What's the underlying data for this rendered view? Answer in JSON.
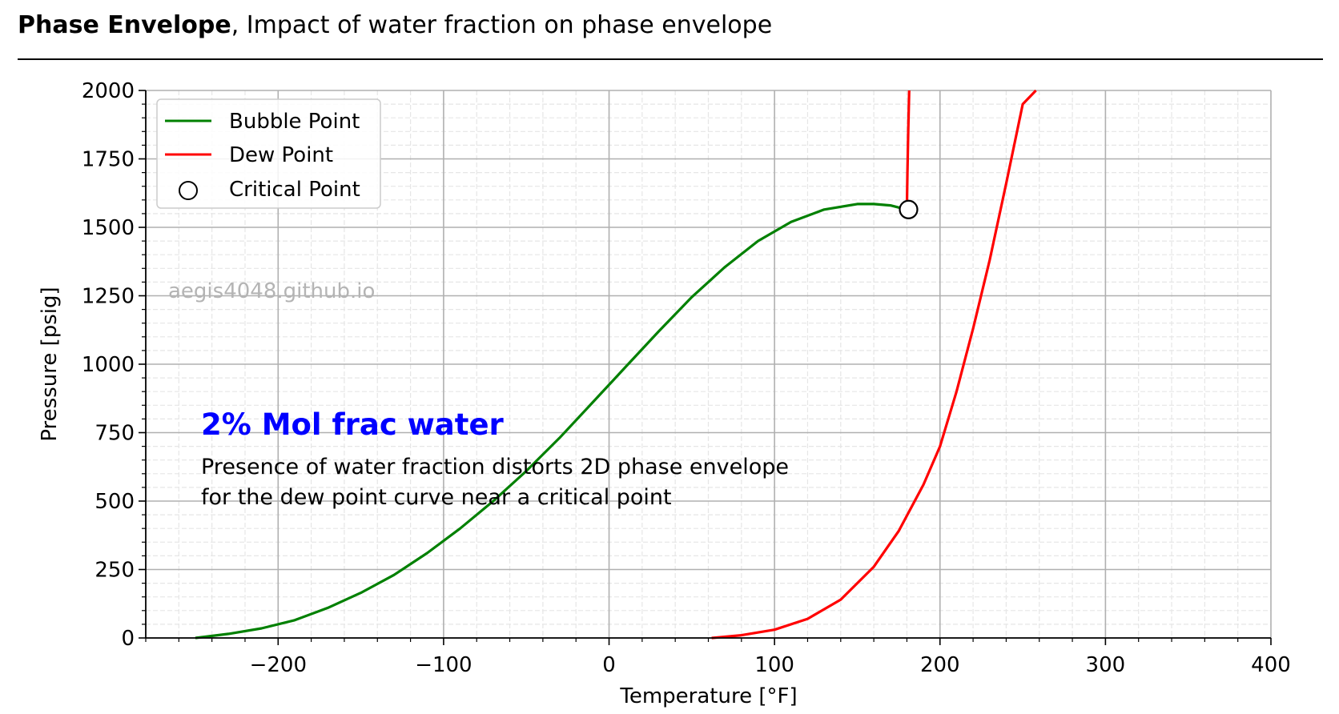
{
  "header": {
    "title_bold": "Phase Envelope",
    "title_rest": ", Impact of water fraction on phase envelope"
  },
  "watermark": "aegis4048.github.io",
  "annotation": {
    "headline": "2% Mol frac water",
    "line1": "Presence of water fraction distorts 2D phase envelope",
    "line2": "for the dew point curve near a critical point",
    "headline_color": "#0000ff"
  },
  "chart_data": {
    "type": "line",
    "xlabel": "Temperature [°F]",
    "ylabel": "Pressure [psig]",
    "xlim": [
      -280,
      400
    ],
    "ylim": [
      0,
      2000
    ],
    "x_ticks": [
      -200,
      -100,
      0,
      100,
      200,
      300,
      400
    ],
    "x_tick_labels": [
      "−200",
      "−100",
      "0",
      "100",
      "200",
      "300",
      "400"
    ],
    "y_ticks": [
      0,
      250,
      500,
      750,
      1000,
      1250,
      1500,
      1750,
      2000
    ],
    "y_tick_labels": [
      "0",
      "250",
      "500",
      "750",
      "1000",
      "1250",
      "1500",
      "1750",
      "2000"
    ],
    "grid": true,
    "legend_position": "top-left",
    "series": [
      {
        "name": "Bubble Point",
        "color": "#008000",
        "x": [
          -250,
          -230,
          -210,
          -190,
          -170,
          -150,
          -130,
          -110,
          -90,
          -70,
          -50,
          -30,
          -10,
          10,
          30,
          50,
          70,
          90,
          110,
          130,
          150,
          160,
          170,
          180
        ],
        "y": [
          0,
          15,
          35,
          65,
          110,
          165,
          230,
          310,
          400,
          500,
          610,
          730,
          860,
          990,
          1120,
          1245,
          1355,
          1450,
          1520,
          1565,
          1585,
          1585,
          1580,
          1565
        ]
      },
      {
        "name": "Dew Point",
        "color": "#ff0000",
        "x": [
          62,
          80,
          100,
          120,
          140,
          160,
          175,
          190,
          200,
          210,
          220,
          230,
          240,
          250,
          258
        ],
        "y": [
          0,
          10,
          30,
          70,
          140,
          260,
          390,
          560,
          700,
          900,
          1130,
          1380,
          1660,
          1950,
          2000
        ]
      },
      {
        "name": "",
        "color": "#ff0000",
        "x": [
          180,
          180.3,
          180.8,
          181.4
        ],
        "y": [
          1565,
          1700,
          1850,
          2000
        ]
      }
    ],
    "critical_point": {
      "name": "Critical Point",
      "x": 181,
      "y": 1565
    }
  }
}
